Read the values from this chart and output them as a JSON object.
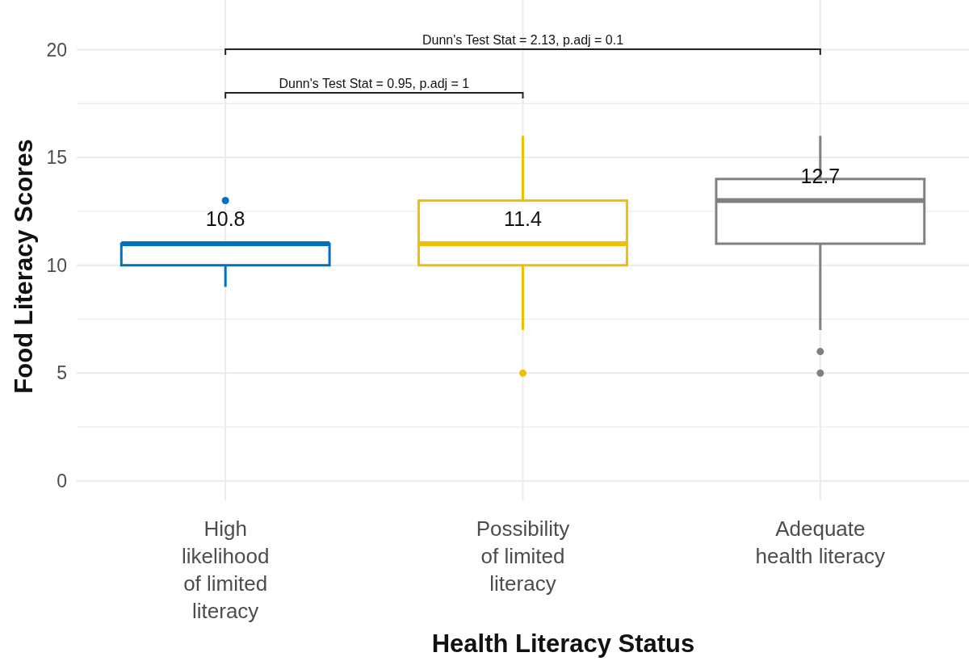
{
  "chart_data": {
    "type": "box",
    "xlabel": "Health Literacy Status",
    "ylabel": "Food Literacy Scores",
    "categories": [
      "High\nlikelihood\nof limited\nliteracy",
      "Possibility\nof limited\nliteracy",
      "Adequate\nhealth literacy"
    ],
    "colors": [
      "#0070c0",
      "#f0c000",
      "#808080"
    ],
    "boxes": [
      {
        "low": 9,
        "q1": 10,
        "median": 11,
        "q3": 11,
        "high": 11,
        "outliers": [
          13
        ]
      },
      {
        "low": 7,
        "q1": 10,
        "median": 11,
        "q3": 13,
        "high": 16,
        "outliers": [
          5
        ]
      },
      {
        "low": 7,
        "q1": 11,
        "median": 13,
        "q3": 14,
        "high": 16,
        "outliers": [
          6,
          5
        ]
      }
    ],
    "annotations": [
      "Dunn's Test Stat = 2.13, p.adj = 0.1",
      "Dunn's Test Stat = 0.95, p.adj = 1",
      "10.8",
      "11.4",
      "12.7"
    ],
    "ylim": [
      -0.9,
      22.3
    ],
    "yticks": [
      0,
      5,
      10,
      15,
      20
    ],
    "grid": true
  }
}
